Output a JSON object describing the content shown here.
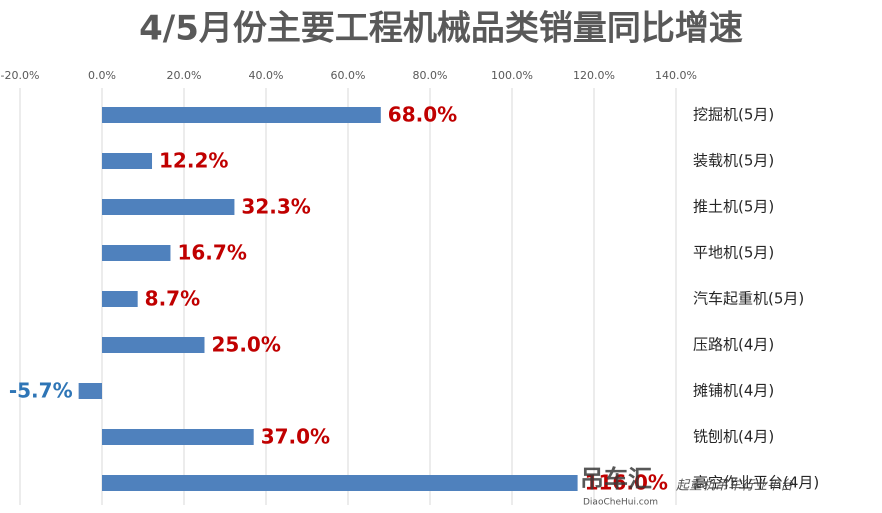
{
  "chart_data": {
    "type": "hbar",
    "title": "4/5月份主要工程机械品类销量同比增速",
    "categories": [
      "挖掘机(5月)",
      "装载机(5月)",
      "推土机(5月)",
      "平地机(5月)",
      "汽车起重机(5月)",
      "压路机(4月)",
      "摊铺机(4月)",
      "铣刨机(4月)",
      "高空作业平台(4月)"
    ],
    "values": [
      68.0,
      12.2,
      32.3,
      16.7,
      8.7,
      25.0,
      -5.7,
      37.0,
      116.0
    ],
    "value_labels": [
      "68.0%",
      "12.2%",
      "32.3%",
      "16.7%",
      "8.7%",
      "25.0%",
      "-5.7%",
      "37.0%",
      "116.0%"
    ],
    "color": "#4f81bd",
    "label_colors": {
      "positive": "#c00000",
      "negative": "#2e75b6"
    },
    "xlim": [
      -20,
      140
    ],
    "xticks": [
      {
        "value": -20,
        "label": "-20.0%"
      },
      {
        "value": 0,
        "label": "0.0%"
      },
      {
        "value": 20,
        "label": "20.0%"
      },
      {
        "value": 40,
        "label": "40.0%"
      },
      {
        "value": 60,
        "label": "60.0%"
      },
      {
        "value": 80,
        "label": "80.0%"
      },
      {
        "value": 100,
        "label": "100.0%"
      },
      {
        "value": 120,
        "label": "120.0%"
      },
      {
        "value": 140,
        "label": "140.0%"
      }
    ],
    "grid": true,
    "watermark": [
      "吊车汇",
      "DiaoCheHui.com",
      "起重机吊车行业平台"
    ]
  }
}
